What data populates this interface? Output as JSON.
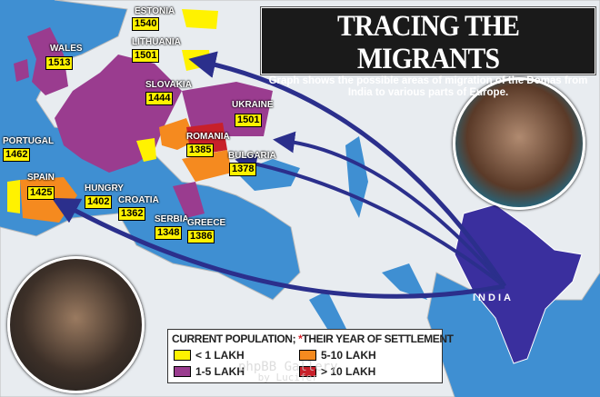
{
  "title": "TRACING THE MIGRANTS",
  "subtitle": "Graph shows the possible areas of migration of the Domas from India to various parts of Europe.",
  "colors": {
    "sea": "#3f8fd2",
    "land": "#e8ecf0",
    "lt1": "#fff200",
    "l1to5": "#9a3c8f",
    "l5to10": "#f58a1f",
    "gt10": "#c8202a",
    "arrow": "#2b2f8c"
  },
  "countries": [
    {
      "name": "ESTONIA",
      "year": "1540"
    },
    {
      "name": "LITHUANIA",
      "year": "1501"
    },
    {
      "name": "WALES",
      "year": "1513"
    },
    {
      "name": "SLOVAKIA",
      "year": "1444"
    },
    {
      "name": "UKRAINE",
      "year": "1501"
    },
    {
      "name": "PORTUGAL",
      "year": "1462"
    },
    {
      "name": "ROMANIA",
      "year": "1385"
    },
    {
      "name": "BULGARIA",
      "year": "1378"
    },
    {
      "name": "SPAIN",
      "year": "1425"
    },
    {
      "name": "HUNGRY",
      "year": "1402"
    },
    {
      "name": "CROATIA",
      "year": "1362"
    },
    {
      "name": "SERBIA",
      "year": "1348"
    },
    {
      "name": "GREECE",
      "year": "1386"
    }
  ],
  "origin": "INDIA",
  "legend": {
    "heading": "CURRENT POPULATION; ",
    "star": "*",
    "heading2": "THEIR YEAR OF SETTLEMENT",
    "items": [
      {
        "label": "< 1 LAKH",
        "color": "#fff200"
      },
      {
        "label": "5-10 LAKH",
        "color": "#f58a1f"
      },
      {
        "label": "1-5 LAKH",
        "color": "#9a3c8f"
      },
      {
        "label": "> 10 LAKH",
        "color": "#c8202a"
      }
    ]
  },
  "watermark": {
    "line1": "phpBB Gallery",
    "line2": "by Lucifer"
  }
}
